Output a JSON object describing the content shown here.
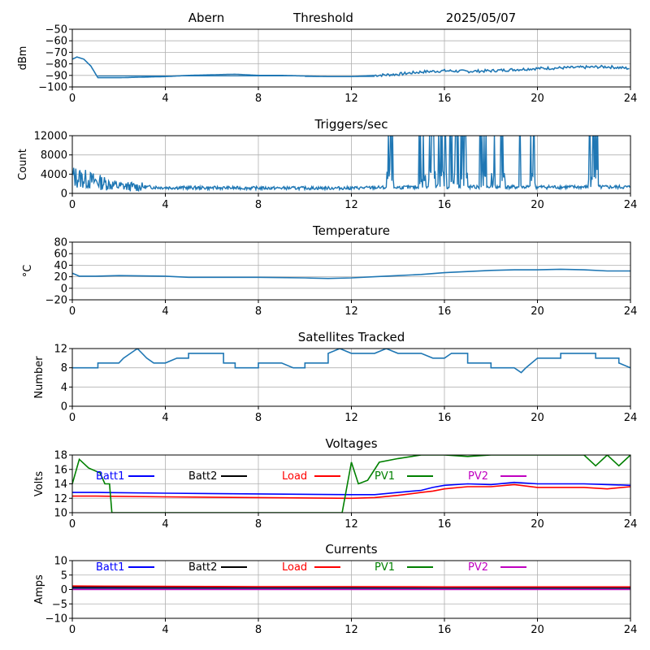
{
  "header": {
    "station": "Abern",
    "subtitle": "Threshold",
    "date": "2025/05/07"
  },
  "chart_data": [
    {
      "id": "threshold",
      "type": "line",
      "title": "",
      "ylabel": "dBm",
      "xlim": [
        0,
        24
      ],
      "ylim": [
        -100,
        -50
      ],
      "xticks": [
        0,
        4,
        8,
        12,
        16,
        20,
        24
      ],
      "yticks": [
        -100,
        -90,
        -80,
        -70,
        -60,
        -50
      ],
      "grid": true,
      "series": [
        {
          "color": "#1f77b4",
          "points": [
            [
              0,
              -76
            ],
            [
              0.2,
              -74
            ],
            [
              0.5,
              -76
            ],
            [
              0.8,
              -82
            ],
            [
              1.1,
              -92
            ],
            [
              2,
              -92
            ],
            [
              3,
              -91.5
            ],
            [
              4,
              -91
            ],
            [
              5,
              -90
            ],
            [
              6,
              -89.5
            ],
            [
              7,
              -89
            ],
            [
              8,
              -90
            ],
            [
              9,
              -90
            ],
            [
              10,
              -90.5
            ],
            [
              11,
              -91
            ],
            [
              12,
              -91
            ],
            [
              13,
              -90
            ],
            [
              14,
              -89
            ],
            [
              15,
              -87
            ],
            [
              16,
              -86
            ],
            [
              17,
              -86.5
            ],
            [
              18,
              -86
            ],
            [
              19,
              -85
            ],
            [
              20,
              -84
            ],
            [
              21,
              -83.5
            ],
            [
              22,
              -83
            ],
            [
              23,
              -82.5
            ],
            [
              24,
              -84
            ]
          ],
          "lines": [
            [
              -90.5,
              1.1,
              10
            ],
            [
              -91,
              10,
              13
            ]
          ]
        }
      ]
    },
    {
      "id": "triggers",
      "type": "line",
      "title": "Triggers/sec",
      "ylabel": "Count",
      "xlim": [
        0,
        24
      ],
      "ylim": [
        0,
        12000
      ],
      "xticks": [
        0,
        4,
        8,
        12,
        16,
        20,
        24
      ],
      "yticks": [
        0,
        4000,
        8000,
        12000
      ],
      "grid": true,
      "series": [
        {
          "color": "#1f77b4",
          "baseline": [
            [
              0,
              3500
            ],
            [
              1,
              2500
            ],
            [
              2,
              1500
            ],
            [
              4,
              1200
            ],
            [
              8,
              1100
            ],
            [
              12,
              1100
            ],
            [
              13,
              1200
            ],
            [
              16,
              1300
            ],
            [
              20,
              1300
            ],
            [
              24,
              1300
            ]
          ],
          "bursts": [
            [
              13.5,
              13.8
            ],
            [
              14.9,
              15.2
            ],
            [
              15.3,
              15.6
            ],
            [
              15.7,
              16.1
            ],
            [
              16.2,
              16.6
            ],
            [
              16.7,
              17.0
            ],
            [
              17.5,
              17.8
            ],
            [
              18.0,
              18.2
            ],
            [
              18.4,
              18.6
            ],
            [
              19.2,
              19.3
            ],
            [
              19.7,
              19.9
            ],
            [
              22.2,
              22.6
            ]
          ]
        }
      ]
    },
    {
      "id": "temperature",
      "type": "line",
      "title": "Temperature",
      "ylabel": "°C",
      "xlim": [
        0,
        24
      ],
      "ylim": [
        -20,
        80
      ],
      "xticks": [
        0,
        4,
        8,
        12,
        16,
        20,
        24
      ],
      "yticks": [
        -20,
        0,
        20,
        40,
        60,
        80
      ],
      "grid": true,
      "series": [
        {
          "color": "#1f77b4",
          "points": [
            [
              0,
              26
            ],
            [
              0.3,
              21
            ],
            [
              1,
              21
            ],
            [
              2,
              22
            ],
            [
              4,
              21
            ],
            [
              5,
              19
            ],
            [
              8,
              19
            ],
            [
              10,
              18
            ],
            [
              11,
              17
            ],
            [
              12,
              18
            ],
            [
              13,
              20
            ],
            [
              14,
              22
            ],
            [
              15,
              24
            ],
            [
              16,
              27
            ],
            [
              17,
              29
            ],
            [
              18,
              31
            ],
            [
              19,
              32
            ],
            [
              20,
              32
            ],
            [
              21,
              33
            ],
            [
              22,
              32
            ],
            [
              23,
              30
            ],
            [
              24,
              30
            ]
          ]
        }
      ]
    },
    {
      "id": "satellites",
      "type": "line",
      "title": "Satellites Tracked",
      "ylabel": "Number",
      "xlim": [
        0,
        24
      ],
      "ylim": [
        0,
        12
      ],
      "xticks": [
        0,
        4,
        8,
        12,
        16,
        20,
        24
      ],
      "yticks": [
        0,
        4,
        8,
        12
      ],
      "grid": true,
      "series": [
        {
          "color": "#1f77b4",
          "points": [
            [
              0,
              8
            ],
            [
              1.1,
              8
            ],
            [
              1.1,
              9
            ],
            [
              2,
              9
            ],
            [
              2.2,
              10
            ],
            [
              2.5,
              11
            ],
            [
              2.8,
              12
            ],
            [
              3.2,
              10
            ],
            [
              3.5,
              9
            ],
            [
              4,
              9
            ],
            [
              4.5,
              10
            ],
            [
              5,
              10
            ],
            [
              5,
              11
            ],
            [
              6.5,
              11
            ],
            [
              6.5,
              9
            ],
            [
              7,
              9
            ],
            [
              7,
              8
            ],
            [
              8,
              8
            ],
            [
              8,
              9
            ],
            [
              9,
              9
            ],
            [
              9.5,
              8
            ],
            [
              10,
              8
            ],
            [
              10,
              9
            ],
            [
              11,
              9
            ],
            [
              11,
              11
            ],
            [
              11.5,
              12
            ],
            [
              12,
              11
            ],
            [
              13,
              11
            ],
            [
              13.5,
              12
            ],
            [
              14,
              11
            ],
            [
              15,
              11
            ],
            [
              15.5,
              10
            ],
            [
              16,
              10
            ],
            [
              16.3,
              11
            ],
            [
              17,
              11
            ],
            [
              17,
              9
            ],
            [
              18,
              9
            ],
            [
              18,
              8
            ],
            [
              19,
              8
            ],
            [
              19.3,
              7
            ],
            [
              19.5,
              8
            ],
            [
              20,
              10
            ],
            [
              21,
              10
            ],
            [
              21,
              11
            ],
            [
              22.5,
              11
            ],
            [
              22.5,
              10
            ],
            [
              23.5,
              10
            ],
            [
              23.5,
              9
            ],
            [
              24,
              8
            ]
          ]
        }
      ]
    },
    {
      "id": "voltages",
      "type": "line",
      "title": "Voltages",
      "ylabel": "Volts",
      "xlim": [
        0,
        24
      ],
      "ylim": [
        10,
        18
      ],
      "xticks": [
        0,
        4,
        8,
        12,
        16,
        20,
        24
      ],
      "yticks": [
        10,
        12,
        14,
        16,
        18
      ],
      "grid": true,
      "legend": [
        "Batt1",
        "Batt2",
        "Load",
        "PV1",
        "PV2"
      ],
      "series": [
        {
          "name": "Batt1",
          "color": "#0000ff",
          "points": [
            [
              0,
              12.8
            ],
            [
              1,
              12.8
            ],
            [
              4,
              12.7
            ],
            [
              8,
              12.6
            ],
            [
              12,
              12.5
            ],
            [
              13,
              12.5
            ],
            [
              14,
              12.8
            ],
            [
              15,
              13.1
            ],
            [
              15.5,
              13.5
            ],
            [
              16,
              13.8
            ],
            [
              17,
              14.0
            ],
            [
              18,
              13.9
            ],
            [
              19,
              14.2
            ],
            [
              20,
              14.0
            ],
            [
              22,
              14.0
            ],
            [
              23,
              13.9
            ],
            [
              24,
              13.8
            ]
          ]
        },
        {
          "name": "Batt2",
          "color": "#000000",
          "points": []
        },
        {
          "name": "Load",
          "color": "#ff0000",
          "points": [
            [
              0,
              12.3
            ],
            [
              1,
              12.3
            ],
            [
              4,
              12.2
            ],
            [
              8,
              12.1
            ],
            [
              12,
              12.0
            ],
            [
              13,
              12.1
            ],
            [
              14,
              12.4
            ],
            [
              15,
              12.8
            ],
            [
              15.5,
              13.0
            ],
            [
              16,
              13.3
            ],
            [
              17,
              13.6
            ],
            [
              18,
              13.6
            ],
            [
              19,
              13.9
            ],
            [
              20,
              13.5
            ],
            [
              22,
              13.5
            ],
            [
              23,
              13.3
            ],
            [
              24,
              13.6
            ]
          ]
        },
        {
          "name": "PV1",
          "color": "#008000",
          "points": [
            [
              0,
              14.0
            ],
            [
              0.3,
              17.4
            ],
            [
              0.7,
              16.2
            ],
            [
              1.2,
              15.5
            ],
            [
              1.4,
              14.0
            ],
            [
              1.6,
              14.0
            ],
            [
              1.7,
              10.0
            ],
            [
              11.6,
              10.0
            ],
            [
              12,
              17.0
            ],
            [
              12.3,
              14.0
            ],
            [
              12.7,
              14.5
            ],
            [
              13.2,
              17.0
            ],
            [
              14,
              17.5
            ],
            [
              15,
              18.0
            ],
            [
              16,
              18.0
            ],
            [
              17,
              17.8
            ],
            [
              18,
              18.0
            ],
            [
              19,
              18.0
            ],
            [
              22,
              18.0
            ],
            [
              22.5,
              16.5
            ],
            [
              23,
              18.0
            ],
            [
              23.5,
              16.5
            ],
            [
              24,
              18.0
            ]
          ]
        },
        {
          "name": "PV2",
          "color": "#c000c0",
          "points": []
        }
      ]
    },
    {
      "id": "currents",
      "type": "line",
      "title": "Currents",
      "ylabel": "Amps",
      "xlim": [
        0,
        24
      ],
      "ylim": [
        -10,
        10
      ],
      "xticks": [
        0,
        4,
        8,
        12,
        16,
        20,
        24
      ],
      "yticks": [
        -10,
        -5,
        0,
        5,
        10
      ],
      "grid": true,
      "legend": [
        "Batt1",
        "Batt2",
        "Load",
        "PV1",
        "PV2"
      ],
      "series": [
        {
          "name": "Batt1",
          "color": "#0000ff",
          "points": [
            [
              0,
              0.3
            ],
            [
              24,
              0.3
            ]
          ]
        },
        {
          "name": "Batt2",
          "color": "#000000",
          "points": [
            [
              0,
              0.8
            ],
            [
              24,
              0.7
            ]
          ]
        },
        {
          "name": "Load",
          "color": "#ff0000",
          "points": [
            [
              0,
              1.2
            ],
            [
              3,
              1.1
            ],
            [
              8,
              1.0
            ],
            [
              12,
              1.0
            ],
            [
              16,
              0.9
            ],
            [
              20,
              0.9
            ],
            [
              24,
              0.9
            ]
          ]
        },
        {
          "name": "PV1",
          "color": "#008000",
          "points": [
            [
              0,
              0.1
            ],
            [
              24,
              0.1
            ]
          ]
        },
        {
          "name": "PV2",
          "color": "#c000c0",
          "points": [
            [
              0,
              0
            ],
            [
              24,
              0
            ]
          ]
        }
      ]
    }
  ]
}
